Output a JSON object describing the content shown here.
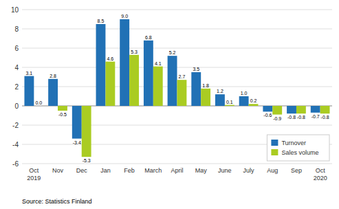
{
  "chart_data": {
    "type": "bar",
    "categories": [
      "Oct\n2019",
      "Nov",
      "Dec",
      "Jan",
      "Feb",
      "March",
      "April",
      "May",
      "June",
      "July",
      "Aug",
      "Sep",
      "Oct\n2020"
    ],
    "series": [
      {
        "name": "Turnover",
        "color": "#2171b5",
        "values": [
          3.1,
          2.8,
          -3.4,
          8.5,
          9.0,
          6.8,
          5.2,
          3.5,
          1.2,
          1.0,
          -0.6,
          -0.8,
          -0.7
        ],
        "value_labels": [
          "3.1",
          "2.8",
          "-3.4",
          "8.5",
          "9.0",
          "6.8",
          "5.2",
          "3.5",
          "1.2",
          "1.0",
          "-0.6",
          "-0.8",
          "-0.7"
        ]
      },
      {
        "name": "Sales volume",
        "color": "#aacc22",
        "values": [
          0.0,
          -0.5,
          -5.3,
          4.6,
          5.3,
          4.1,
          2.7,
          1.8,
          0.1,
          0.2,
          -0.9,
          -0.8,
          -0.8
        ],
        "value_labels": [
          "0.0",
          "-0.5",
          "-5.3",
          "4.6",
          "5.3",
          "4.1",
          "2.7",
          "1.8",
          "0.1",
          "0.2",
          "-0.9",
          "-0.8",
          "-0.8"
        ]
      }
    ],
    "ylim": [
      -6,
      10
    ],
    "yticks": [
      -6,
      -4,
      -2,
      0,
      2,
      4,
      6,
      8,
      10
    ],
    "grid": true,
    "legend": "lower right",
    "data_labels": true,
    "annotations": [
      "Source: Statistics Finland"
    ]
  }
}
